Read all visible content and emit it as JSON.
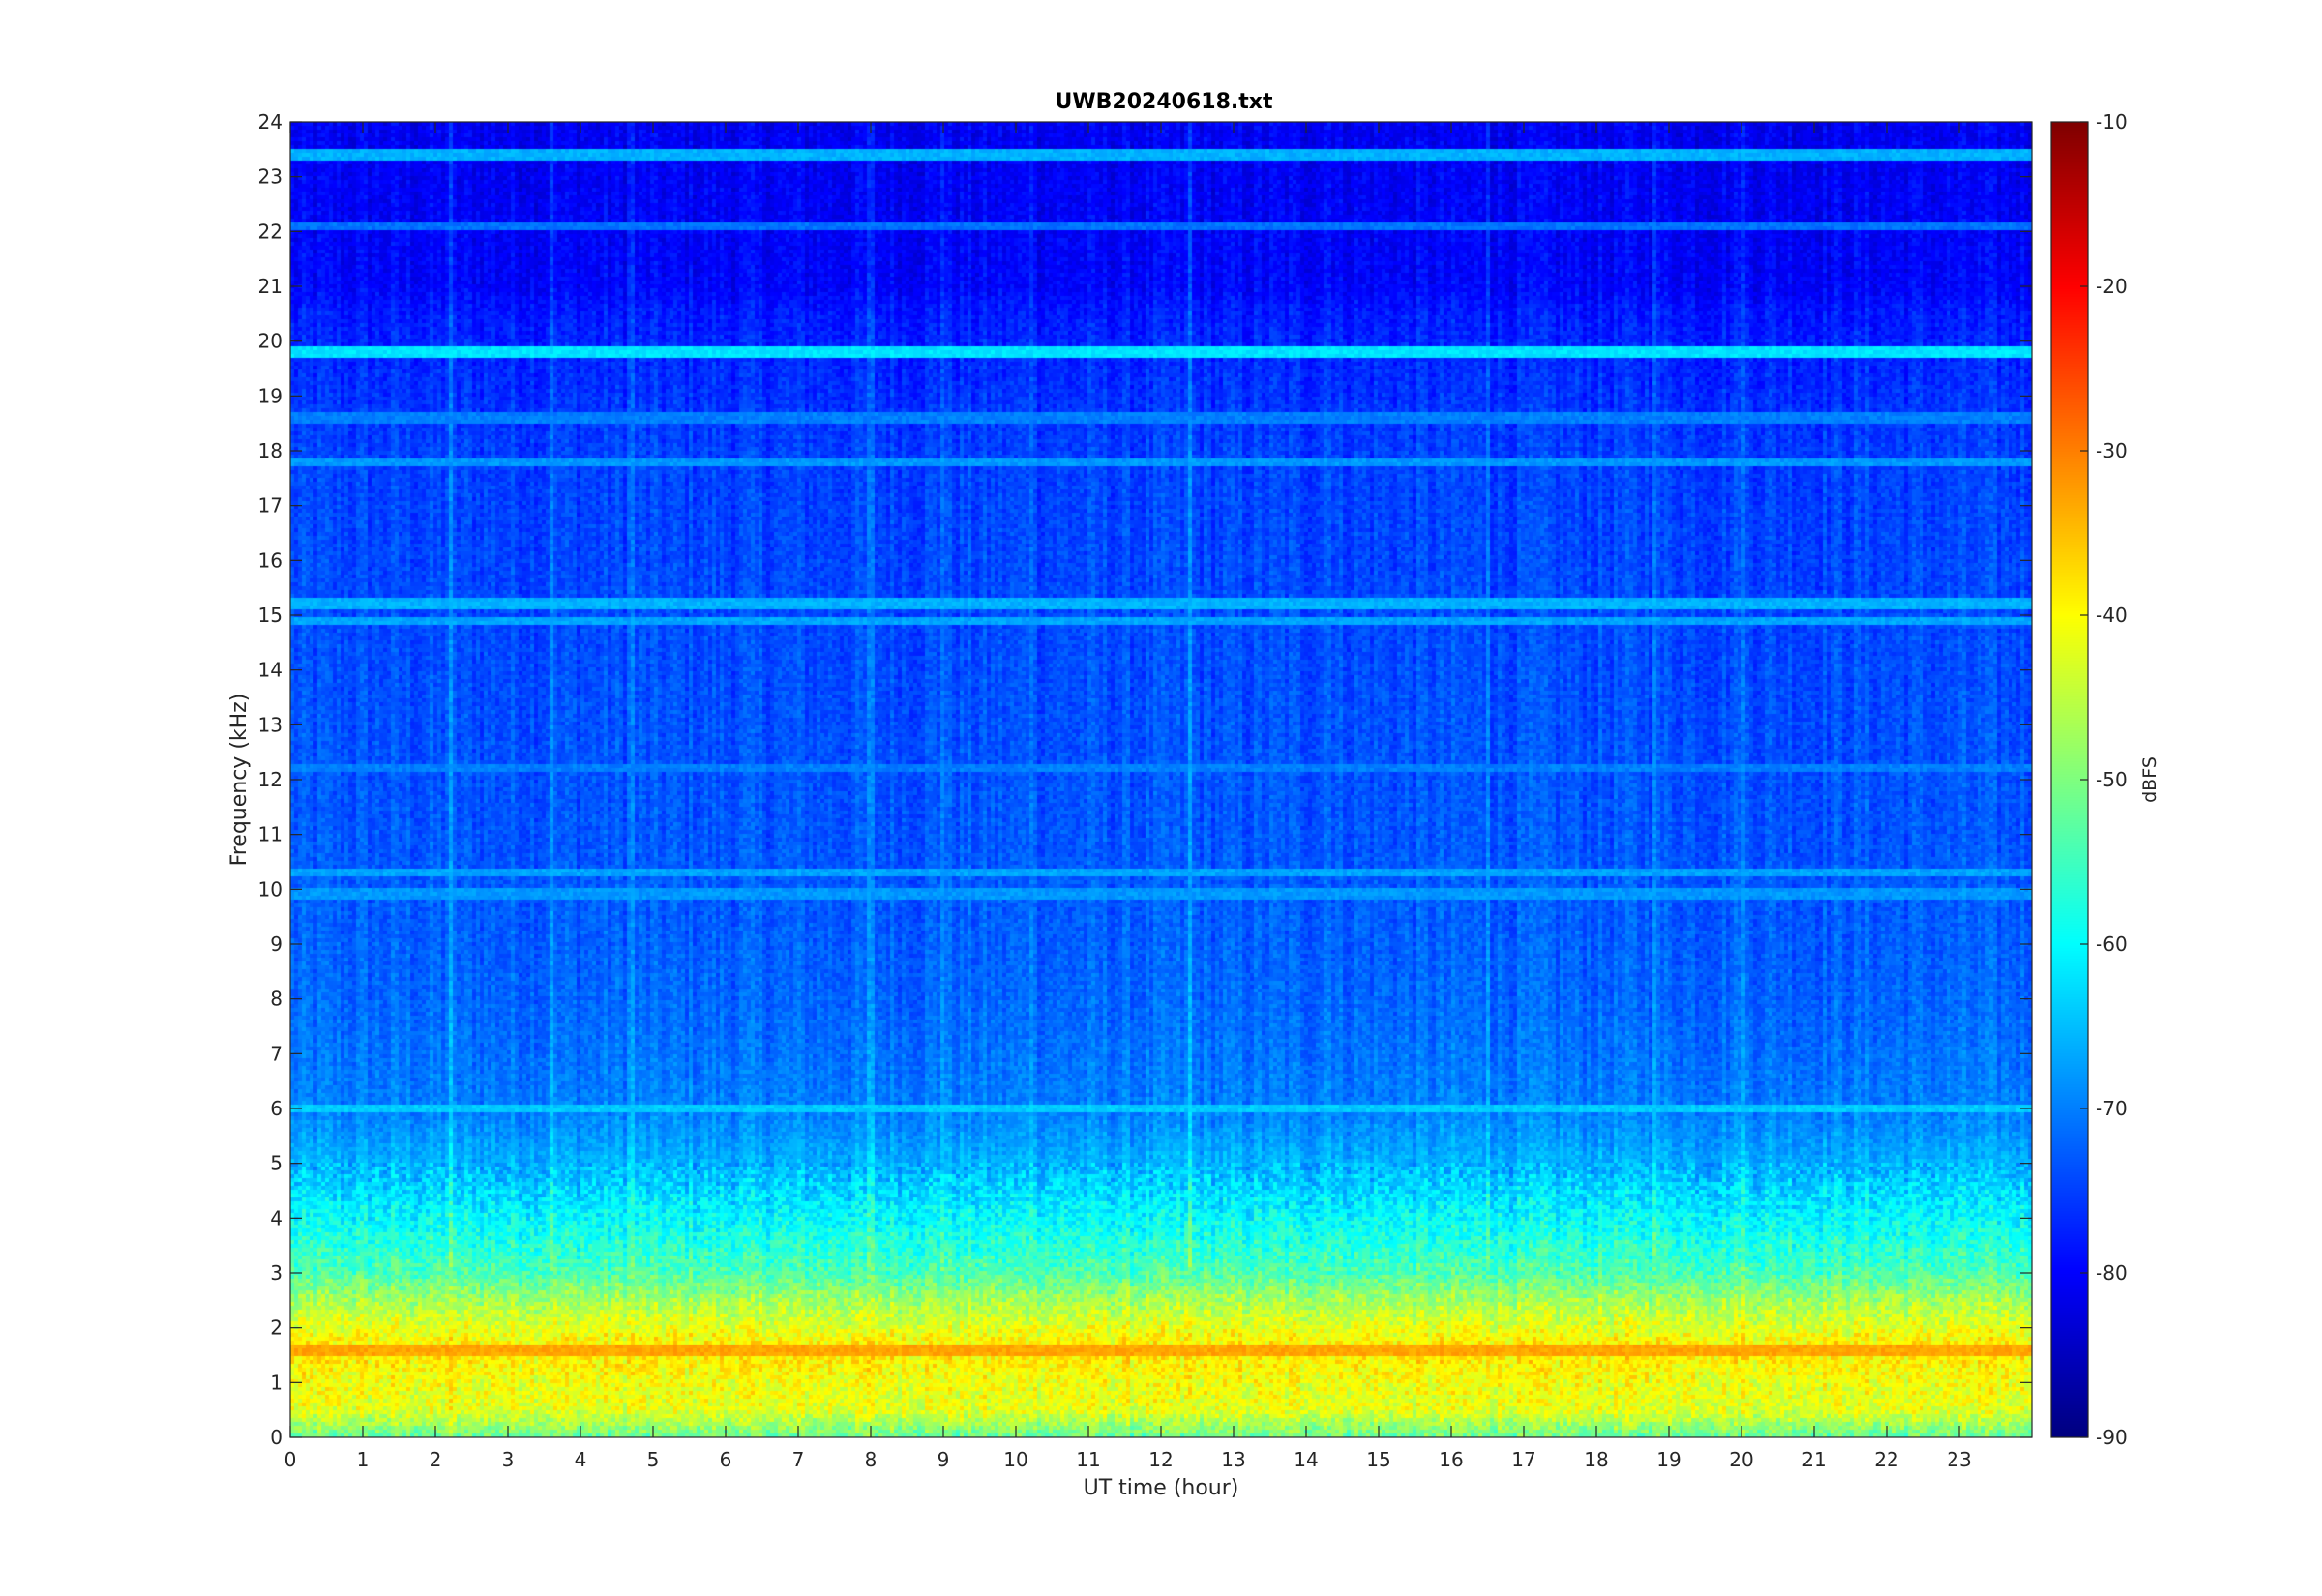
{
  "chart_data": {
    "type": "heatmap",
    "title": "UWB20240618.txt",
    "xlabel": "UT time (hour)",
    "ylabel": "Frequency (kHz)",
    "xlim": [
      0,
      24
    ],
    "ylim": [
      0,
      24
    ],
    "x_ticks": [
      0,
      1,
      2,
      3,
      4,
      5,
      6,
      7,
      8,
      9,
      10,
      11,
      12,
      13,
      14,
      15,
      16,
      17,
      18,
      19,
      20,
      21,
      22,
      23
    ],
    "y_ticks": [
      0,
      1,
      2,
      3,
      4,
      5,
      6,
      7,
      8,
      9,
      10,
      11,
      12,
      13,
      14,
      15,
      16,
      17,
      18,
      19,
      20,
      21,
      22,
      23,
      24
    ],
    "colormap": "jet",
    "colorbar": {
      "label": "dBFS",
      "range": [
        -90,
        -10
      ],
      "ticks": [
        -10,
        -20,
        -30,
        -40,
        -50,
        -60,
        -70,
        -80,
        -90
      ]
    },
    "value_profile_by_frequency_khz": [
      {
        "f": 0.0,
        "dbfs": -52
      },
      {
        "f": 0.5,
        "dbfs": -42
      },
      {
        "f": 1.0,
        "dbfs": -41
      },
      {
        "f": 1.6,
        "dbfs": -38
      },
      {
        "f": 2.0,
        "dbfs": -42
      },
      {
        "f": 2.5,
        "dbfs": -47
      },
      {
        "f": 3.0,
        "dbfs": -54
      },
      {
        "f": 3.5,
        "dbfs": -57
      },
      {
        "f": 4.0,
        "dbfs": -60
      },
      {
        "f": 4.5,
        "dbfs": -63
      },
      {
        "f": 5.0,
        "dbfs": -66
      },
      {
        "f": 6.0,
        "dbfs": -70
      },
      {
        "f": 7.0,
        "dbfs": -71
      },
      {
        "f": 8.0,
        "dbfs": -72
      },
      {
        "f": 10.0,
        "dbfs": -73
      },
      {
        "f": 14.0,
        "dbfs": -74
      },
      {
        "f": 18.0,
        "dbfs": -75
      },
      {
        "f": 20.5,
        "dbfs": -78
      },
      {
        "f": 21.0,
        "dbfs": -80
      },
      {
        "f": 24.0,
        "dbfs": -81
      }
    ],
    "narrowband_lines_khz": [
      {
        "f": 23.4,
        "dbfs": -66
      },
      {
        "f": 22.1,
        "dbfs": -71
      },
      {
        "f": 19.8,
        "dbfs": -62
      },
      {
        "f": 18.6,
        "dbfs": -70
      },
      {
        "f": 17.8,
        "dbfs": -68
      },
      {
        "f": 15.2,
        "dbfs": -66
      },
      {
        "f": 14.9,
        "dbfs": -67
      },
      {
        "f": 12.2,
        "dbfs": -70
      },
      {
        "f": 10.3,
        "dbfs": -67
      },
      {
        "f": 9.9,
        "dbfs": -68
      },
      {
        "f": 6.0,
        "dbfs": -64
      },
      {
        "f": 1.6,
        "dbfs": -33
      }
    ],
    "broadband_events_hour": [
      2.2,
      3.6,
      4.7,
      8.0,
      9.0,
      10.2,
      12.4,
      14.3,
      16.5,
      18.8,
      20.0
    ]
  }
}
